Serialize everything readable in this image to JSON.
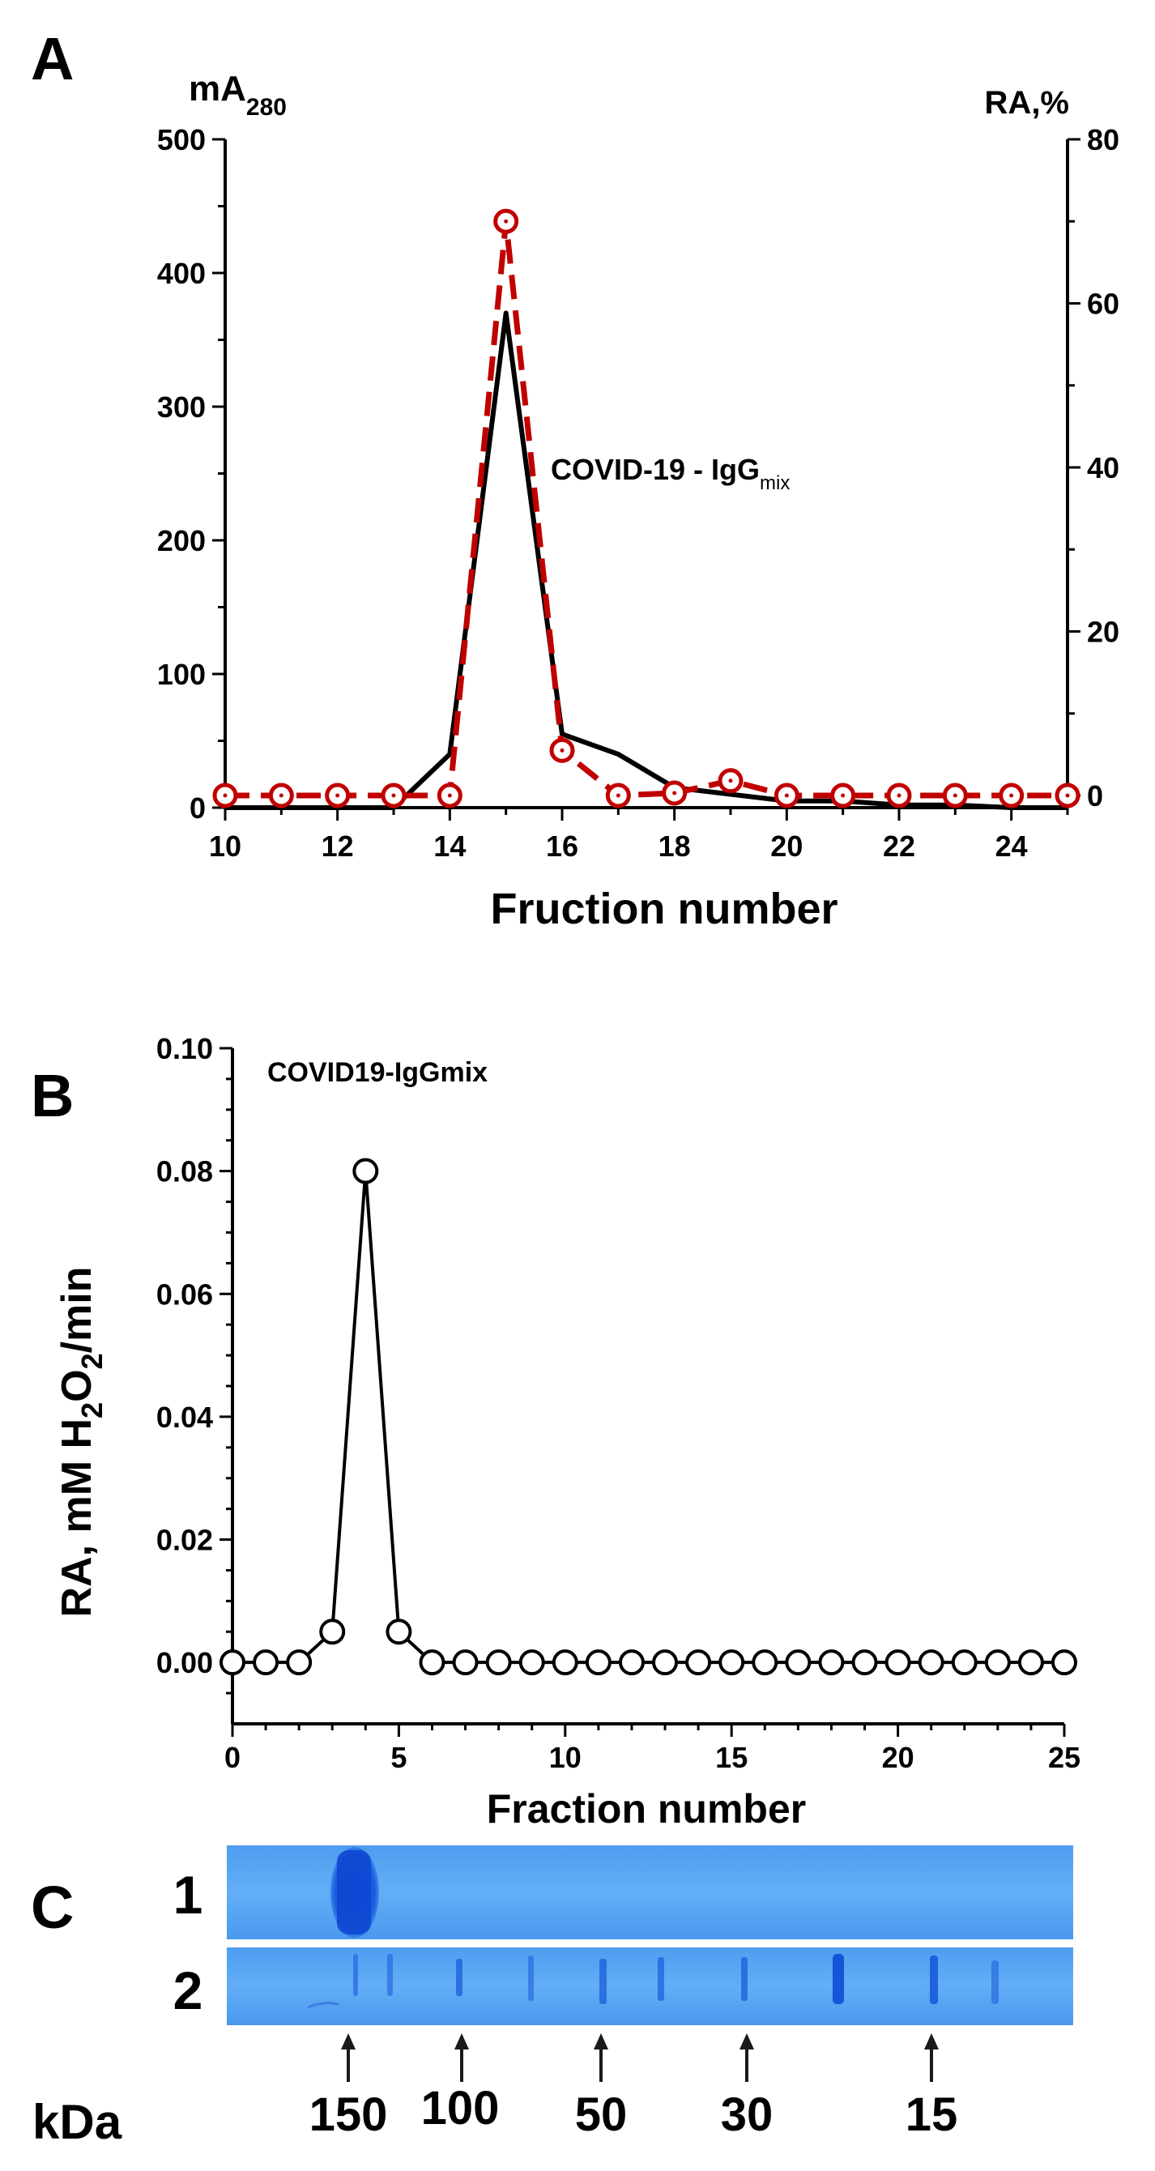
{
  "chart_data": [
    {
      "panel_label": "A",
      "type": "line",
      "xlabel": "Fruction number",
      "ylabel_left": {
        "main": "mA",
        "sub": "280"
      },
      "ylabel_right": "RA,%",
      "annotation": {
        "main": "COVID-19 - IgG",
        "sub": "mix"
      },
      "xlim": [
        10,
        25
      ],
      "ylim_left": [
        0,
        500
      ],
      "ylim_right": [
        0,
        80
      ],
      "x_ticks": [
        "10",
        "12",
        "14",
        "16",
        "18",
        "20",
        "22",
        "24"
      ],
      "y_left_ticks": [
        "0",
        "100",
        "200",
        "300",
        "400",
        "500"
      ],
      "y_right_ticks": [
        "0",
        "20",
        "40",
        "60",
        "80"
      ],
      "series": [
        {
          "name": "A280",
          "axis": "left",
          "color": "#000000",
          "style": "solid",
          "x": [
            10,
            11,
            12,
            13,
            14,
            15,
            16,
            17,
            18,
            19,
            20,
            21,
            22,
            23,
            24,
            25
          ],
          "values": [
            0,
            0,
            0,
            0,
            40,
            370,
            55,
            40,
            15,
            10,
            5,
            5,
            2,
            2,
            0,
            0
          ]
        },
        {
          "name": "RA, %",
          "axis": "right",
          "color": "#c00000",
          "style": "dashed",
          "marker": "circle",
          "x": [
            10,
            11,
            12,
            13,
            14,
            15,
            16,
            17,
            18,
            19,
            20,
            21,
            22,
            23,
            24,
            25
          ],
          "values": [
            0,
            0,
            0,
            0,
            0,
            70,
            5.5,
            0,
            0.3,
            1.8,
            0,
            0,
            0,
            0,
            0,
            0
          ]
        }
      ]
    },
    {
      "panel_label": "B",
      "type": "line",
      "title": "COVID19-IgGmix",
      "xlabel": "Fraction number",
      "ylabel": {
        "pre": "RA, mM H",
        "sub1": "2",
        "mid": "O",
        "sub2": "2",
        "post": "/min"
      },
      "xlim": [
        0,
        25
      ],
      "ylim": [
        -0.01,
        0.1
      ],
      "x_ticks": [
        "0",
        "5",
        "10",
        "15",
        "20",
        "25"
      ],
      "y_ticks": [
        "0.00",
        "0.02",
        "0.04",
        "0.06",
        "0.08",
        "0.10"
      ],
      "series": [
        {
          "name": "RA",
          "color": "#000000",
          "marker": "circle-open",
          "x": [
            0,
            1,
            2,
            3,
            4,
            5,
            6,
            7,
            8,
            9,
            10,
            11,
            12,
            13,
            14,
            15,
            16,
            17,
            18,
            19,
            20,
            21,
            22,
            23,
            24,
            25
          ],
          "values": [
            0,
            0,
            0,
            0.005,
            0.08,
            0.005,
            0,
            0,
            0,
            0,
            0,
            0,
            0,
            0,
            0,
            0,
            0,
            0,
            0,
            0,
            0,
            0,
            0,
            0,
            0,
            0
          ]
        }
      ]
    }
  ],
  "gel": {
    "panel_label": "C",
    "lane_labels": [
      "1",
      "2"
    ],
    "unit_label": "kDa",
    "markers": [
      "150",
      "100",
      "50",
      "30",
      "15"
    ],
    "colors": {
      "gel": "#5aa8f4",
      "band": "#1258d8"
    }
  }
}
